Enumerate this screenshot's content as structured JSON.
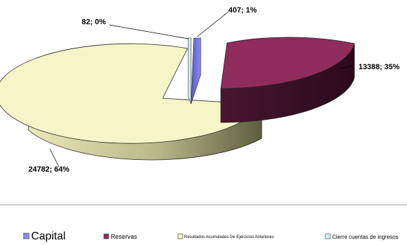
{
  "chart_data": {
    "type": "pie",
    "variant": "3d-exploded",
    "slices": [
      {
        "name": "Capital",
        "value": 407,
        "percent": "1%",
        "label": "407; 1%",
        "color": "#8c8cf0"
      },
      {
        "name": "Reservas",
        "value": 13388,
        "percent": "35%",
        "label": "13388; 35%",
        "color": "#8f2c5d"
      },
      {
        "name": "Resultados Acumulados De Ejercicios Anteriores",
        "value": 24782,
        "percent": "64%",
        "label": "24782; 64%",
        "color": "#f6f5c8"
      },
      {
        "name": "Cierre cuentas de ingresos",
        "value": 82,
        "percent": "0%",
        "label": "82; 0%",
        "color": "#d4f1f4"
      }
    ],
    "legend_position": "bottom"
  }
}
